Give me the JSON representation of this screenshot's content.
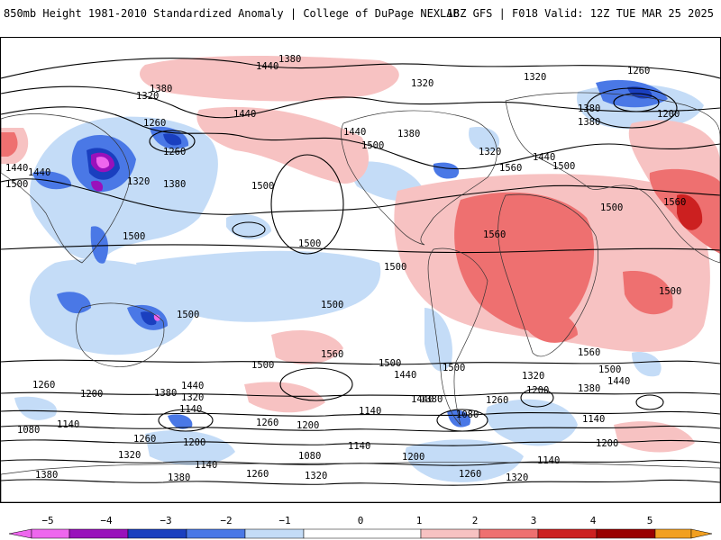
{
  "header": {
    "title_left": "850mb Height 1981-2010 Standardized Anomaly | College of DuPage NEXLAB",
    "title_right": "18Z GFS | F018 Valid: 12Z TUE MAR 25 2025"
  },
  "colors": {
    "neg5": "#ee66ee",
    "neg4": "#9911bb",
    "neg3": "#1a3fbf",
    "neg2": "#4a78e6",
    "neg1": "#c4dcf7",
    "zero": "#ffffff",
    "pos1": "#f7c2c2",
    "pos2": "#ee7070",
    "pos3": "#cc2020",
    "pos4": "#990000",
    "pos5": "#f2a020"
  },
  "map": {
    "contour_labels": [
      {
        "text": "1440"
      },
      {
        "text": "1380"
      },
      {
        "text": "1320"
      },
      {
        "text": "1260"
      },
      {
        "text": "1380"
      },
      {
        "text": "1320"
      },
      {
        "text": "1440"
      },
      {
        "text": "1260"
      },
      {
        "text": "1320"
      },
      {
        "text": "1440"
      },
      {
        "text": "1500"
      },
      {
        "text": "1380"
      },
      {
        "text": "1320"
      },
      {
        "text": "1200"
      },
      {
        "text": "1380"
      },
      {
        "text": "1320"
      },
      {
        "text": "1380"
      },
      {
        "text": "1440"
      },
      {
        "text": "1500"
      },
      {
        "text": "1500"
      },
      {
        "text": "1260"
      },
      {
        "text": "1440"
      },
      {
        "text": "1500"
      },
      {
        "text": "1380"
      },
      {
        "text": "1440"
      },
      {
        "text": "1500"
      },
      {
        "text": "1500"
      },
      {
        "text": "1560"
      },
      {
        "text": "1500"
      },
      {
        "text": "1500"
      },
      {
        "text": "1560"
      },
      {
        "text": "1500"
      },
      {
        "text": "1560"
      },
      {
        "text": "1500"
      },
      {
        "text": "1500"
      },
      {
        "text": "1560"
      },
      {
        "text": "1500"
      },
      {
        "text": "1440"
      },
      {
        "text": "1500"
      },
      {
        "text": "1560"
      },
      {
        "text": "1500"
      },
      {
        "text": "1440"
      },
      {
        "text": "1260"
      },
      {
        "text": "1320"
      },
      {
        "text": "1200"
      },
      {
        "text": "1380"
      },
      {
        "text": "1440"
      },
      {
        "text": "1500"
      },
      {
        "text": "1260"
      },
      {
        "text": "1200"
      },
      {
        "text": "1380"
      },
      {
        "text": "1440"
      },
      {
        "text": "1320"
      },
      {
        "text": "1140"
      },
      {
        "text": "1260"
      },
      {
        "text": "1200"
      },
      {
        "text": "1140"
      },
      {
        "text": "1380"
      },
      {
        "text": "1080"
      },
      {
        "text": "1140"
      },
      {
        "text": "1080"
      },
      {
        "text": "1260"
      },
      {
        "text": "1200"
      },
      {
        "text": "1320"
      },
      {
        "text": "1140"
      },
      {
        "text": "1380"
      },
      {
        "text": "1260"
      },
      {
        "text": "1320"
      },
      {
        "text": "1080"
      },
      {
        "text": "1140"
      },
      {
        "text": "1200"
      },
      {
        "text": "1260"
      },
      {
        "text": "1320"
      },
      {
        "text": "1140"
      },
      {
        "text": "1200"
      },
      {
        "text": "1140"
      },
      {
        "text": "1380"
      }
    ]
  },
  "colorbar": {
    "ticks": [
      "−5",
      "−4",
      "−3",
      "−2",
      "−1",
      "0",
      "1",
      "2",
      "3",
      "4",
      "5"
    ]
  }
}
